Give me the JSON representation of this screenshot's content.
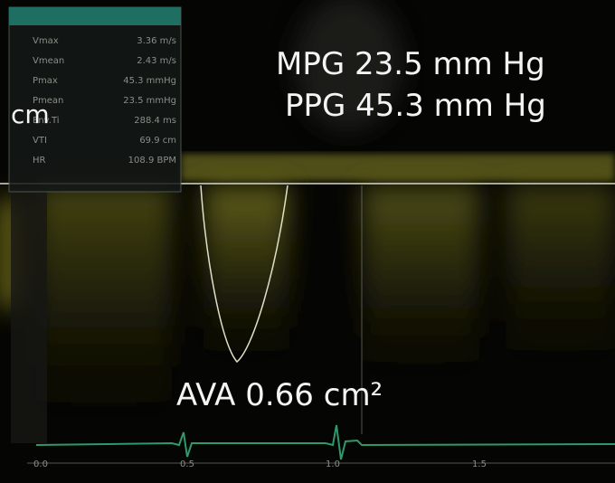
{
  "panel": {
    "rows": [
      {
        "label": "Vmax",
        "value": "3.36 m/s"
      },
      {
        "label": "Vmean",
        "value": "2.43 m/s"
      },
      {
        "label": "Pmax",
        "value": "45.3 mmHg"
      },
      {
        "label": "Pmean",
        "value": "23.5 mmHg"
      },
      {
        "label": "Env.Ti",
        "value": "288.4 ms"
      },
      {
        "label": "VTI",
        "value": "69.9 cm"
      },
      {
        "label": "HR",
        "value": "108.9 BPM"
      }
    ]
  },
  "annotations": {
    "mpg": "MPG 23.5 mm Hg",
    "ppg": "PPG 45.3 mm Hg",
    "unit": "cm",
    "ava": "AVA 0.66 cm²"
  },
  "time_axis": [
    "0.0",
    "0.5",
    "1.0",
    "1.5"
  ]
}
